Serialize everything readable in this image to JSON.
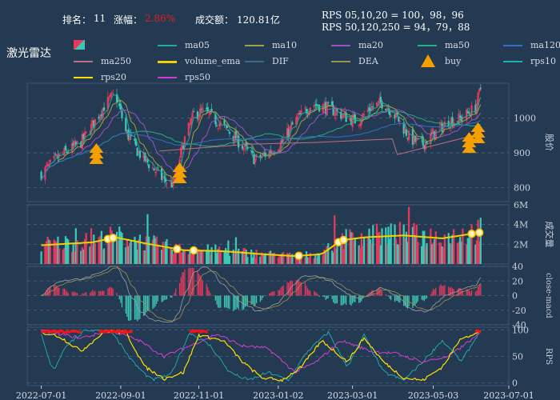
{
  "header": {
    "rank_label": "排名：",
    "rank_value": "11",
    "change_label": "涨幅：",
    "change_value": "2.86%",
    "turnover_label": "成交额：",
    "turnover_value": "120.81亿",
    "rps_line1": "RPS 05,10,20 = 100，98，96",
    "rps_line2": "RPS 50,120,250 = 94，79，88",
    "stock_name": "激光雷达"
  },
  "colors": {
    "background": "#243a52",
    "up": "#e8385b",
    "down": "#3cc8b4",
    "change_text": "#e02020",
    "volume_ema": "#f5d000",
    "buy": "#f5a000",
    "rps20": "#ffe000",
    "rps50": "#d040d0",
    "rps10": "#20b0b0",
    "ma05": "#22a8a0",
    "ma10": "#a0a040",
    "ma20": "#a050c0",
    "ma50": "#20b080",
    "ma120": "#3070c0",
    "ma250": "#c07080",
    "dif": "#888888",
    "dea": "#a09050",
    "rps_highlight": "#ff1010"
  },
  "legend": [
    {
      "name": "",
      "type": "candle"
    },
    {
      "name": "ma05",
      "color": "#22a8a0"
    },
    {
      "name": "ma10",
      "color": "#a0a040"
    },
    {
      "name": "ma20",
      "color": "#a050c0"
    },
    {
      "name": "ma50",
      "color": "#20b080"
    },
    {
      "name": "ma120",
      "color": "#3070c0"
    },
    {
      "name": "ma250",
      "color": "#c07080"
    },
    {
      "name": "volume_ema",
      "color": "#f5d000"
    },
    {
      "name": "DIF",
      "color": "#3a6a8a"
    },
    {
      "name": "DEA",
      "color": "#a09050"
    },
    {
      "name": "buy",
      "type": "triangle",
      "color": "#f5a000"
    },
    {
      "name": "rps10",
      "color": "#20b0b0"
    },
    {
      "name": "rps20",
      "color": "#ffe000",
      "type": "dotline"
    },
    {
      "name": "rps50",
      "color": "#d040d0"
    }
  ],
  "chart_data": [
    {
      "type": "candlestick",
      "panel": "price",
      "ylabel": "股价",
      "yticks": [
        800,
        900,
        1000
      ],
      "ylim": [
        760,
        1100
      ],
      "buy_signals": [
        {
          "x": "2022-08-13",
          "y": 900
        },
        {
          "x": "2022-10-17",
          "y": 845
        },
        {
          "x": "2023-05-31",
          "y": 932
        },
        {
          "x": "2023-06-07",
          "y": 960
        }
      ],
      "close_anchors": [
        [
          "2022-07-01",
          840
        ],
        [
          "2022-07-15",
          890
        ],
        [
          "2022-08-01",
          930
        ],
        [
          "2022-08-10",
          980
        ],
        [
          "2022-08-20",
          1040
        ],
        [
          "2022-08-28",
          1070
        ],
        [
          "2022-09-05",
          960
        ],
        [
          "2022-09-15",
          900
        ],
        [
          "2022-09-25",
          860
        ],
        [
          "2022-10-05",
          820
        ],
        [
          "2022-10-12",
          810
        ],
        [
          "2022-10-20",
          930
        ],
        [
          "2022-10-28",
          1010
        ],
        [
          "2022-11-05",
          1020
        ],
        [
          "2022-11-15",
          990
        ],
        [
          "2022-11-25",
          960
        ],
        [
          "2022-12-05",
          920
        ],
        [
          "2022-12-15",
          880
        ],
        [
          "2022-12-25",
          900
        ],
        [
          "2023-01-05",
          930
        ],
        [
          "2023-01-15",
          990
        ],
        [
          "2023-01-28",
          1040
        ],
        [
          "2023-02-05",
          1035
        ],
        [
          "2023-02-15",
          1020
        ],
        [
          "2023-02-25",
          1000
        ],
        [
          "2023-03-05",
          990
        ],
        [
          "2023-03-15",
          1030
        ],
        [
          "2023-03-25",
          1045
        ],
        [
          "2023-04-05",
          1000
        ],
        [
          "2023-04-15",
          940
        ],
        [
          "2023-04-25",
          925
        ],
        [
          "2023-05-05",
          960
        ],
        [
          "2023-05-15",
          990
        ],
        [
          "2023-05-25",
          1000
        ],
        [
          "2023-06-05",
          1030
        ],
        [
          "2023-06-09",
          1085
        ]
      ]
    },
    {
      "type": "bar",
      "panel": "volume",
      "ylabel": "成交量",
      "yticks": [
        "2M",
        "4M",
        "6M"
      ],
      "ylim": [
        0,
        6
      ],
      "volume_ema_anchors": [
        [
          "2022-07-01",
          1.9
        ],
        [
          "2022-08-10",
          2.2
        ],
        [
          "2022-08-28",
          2.7
        ],
        [
          "2022-09-20",
          2.1
        ],
        [
          "2022-10-20",
          1.4
        ],
        [
          "2022-11-20",
          1.3
        ],
        [
          "2022-12-20",
          1.0
        ],
        [
          "2023-01-15",
          0.8
        ],
        [
          "2023-02-05",
          1.0
        ],
        [
          "2023-02-20",
          2.4
        ],
        [
          "2023-03-10",
          2.7
        ],
        [
          "2023-04-10",
          2.9
        ],
        [
          "2023-05-10",
          2.6
        ],
        [
          "2023-06-09",
          3.2
        ]
      ]
    },
    {
      "type": "bar",
      "panel": "macd",
      "ylabel": "close-macd",
      "yticks": [
        -40,
        -20,
        0,
        20,
        40
      ],
      "ylim": [
        -40,
        40
      ]
    },
    {
      "type": "line",
      "panel": "rps",
      "ylabel": "RPS",
      "yticks": [
        0,
        50,
        100
      ],
      "ylim": [
        -5,
        105
      ]
    }
  ],
  "xaxis": {
    "ticks": [
      "2022-07-01",
      "2022-09-01",
      "2022-11-01",
      "2023-01-02",
      "2023-03-01",
      "2023-05-03",
      "2023-07-01"
    ]
  }
}
